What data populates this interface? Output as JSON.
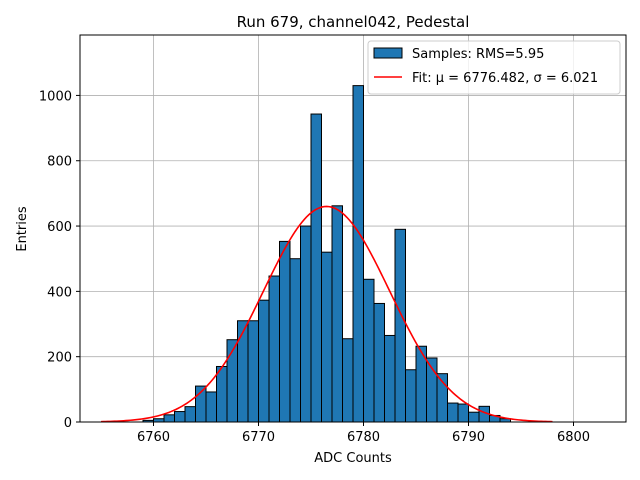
{
  "chart_data": {
    "type": "bar",
    "title": "Run 679, channel042, Pedestal",
    "xlabel": "ADC Counts",
    "ylabel": "Entries",
    "xlim": [
      6753,
      6805
    ],
    "ylim": [
      0,
      1185
    ],
    "xticks": [
      6760,
      6770,
      6780,
      6790,
      6800
    ],
    "xtick_labels": [
      "6760",
      "6770",
      "6780",
      "6790",
      "6800"
    ],
    "yticks": [
      0,
      200,
      400,
      600,
      800,
      1000
    ],
    "ytick_labels": [
      "0",
      "200",
      "400",
      "600",
      "800",
      "1000"
    ],
    "grid": true,
    "legend_position": "top-right",
    "bar_color": "#1f77b4",
    "fit_color": "#ff0000",
    "histogram": {
      "name": "Samples: RMS=5.95",
      "bin_edges": [
        6759,
        6760,
        6761,
        6762,
        6763,
        6764,
        6765,
        6766,
        6767,
        6768,
        6769,
        6770,
        6771,
        6772,
        6773,
        6774,
        6775,
        6776,
        6777,
        6778,
        6779,
        6780,
        6781,
        6782,
        6783,
        6784,
        6785,
        6786,
        6787,
        6788,
        6789,
        6790,
        6791,
        6792,
        6793,
        6794
      ],
      "counts": [
        5,
        10,
        22,
        32,
        47,
        110,
        92,
        170,
        252,
        310,
        310,
        373,
        447,
        553,
        500,
        600,
        943,
        520,
        662,
        255,
        1030,
        437,
        363,
        265,
        590,
        160,
        232,
        196,
        148,
        58,
        55,
        30,
        48,
        20,
        10
      ]
    },
    "fit": {
      "name": "Fit: μ = 6776.482, σ = 6.021",
      "mu": 6776.482,
      "sigma": 6.021,
      "amplitude": 660,
      "x_range": [
        6755,
        6798
      ]
    }
  }
}
